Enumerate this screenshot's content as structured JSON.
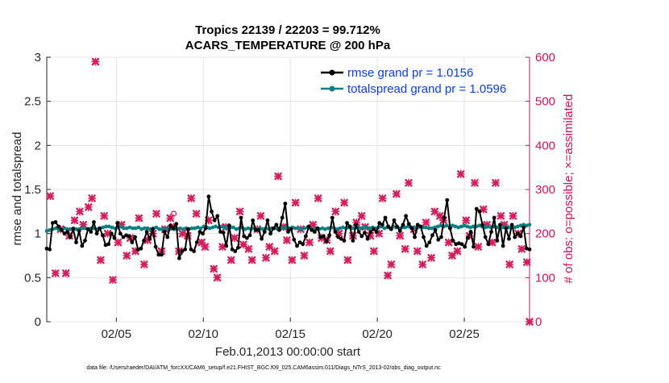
{
  "chart_data": {
    "type": "line",
    "title": "Tropics 22139 / 22203 = 99.712%",
    "subtitle": "ACARS_TEMPERATURE @ 200 hPa",
    "xlabel": "Feb.01,2013 00:00:00 start",
    "ylabel": "rmse and totalspread",
    "y2label": "# of obs: o=possible; ×=assimilated",
    "xlim": [
      1,
      28.75
    ],
    "ylim": [
      0,
      3
    ],
    "y2lim": [
      0,
      600
    ],
    "x_ticks": [
      5,
      10,
      15,
      20,
      25
    ],
    "x_tick_labels": [
      "02/05",
      "02/10",
      "02/15",
      "02/20",
      "02/25"
    ],
    "y_ticks": [
      0,
      0.5,
      1,
      1.5,
      2,
      2.5,
      3
    ],
    "y_tick_labels": [
      "0",
      "0.5",
      "1",
      "1.5",
      "2",
      "2.5",
      "3"
    ],
    "y2_ticks": [
      0,
      100,
      200,
      300,
      400,
      500,
      600
    ],
    "y2_tick_labels": [
      "0",
      "100",
      "200",
      "300",
      "400",
      "500",
      "600"
    ],
    "legend_position": "top-right",
    "series": [
      {
        "name": "rmse grand pr = 1.0156",
        "axis": "left",
        "color": "#000000",
        "values": [
          0.83,
          0.82,
          1.12,
          1.13,
          1.08,
          1.04,
          1.0,
          1.02,
          0.96,
          1.05,
          0.9,
          1.03,
          0.86,
          0.92,
          1.05,
          1.02,
          1.13,
          1.0,
          1.06,
          0.98,
          0.87,
          0.88,
          1.0,
          0.95,
          1.12,
          1.0,
          0.96,
          0.98,
          0.97,
          0.9,
          0.96,
          0.82,
          0.83,
          0.92,
          1.02,
          0.94,
          1.05,
          0.85,
          0.76,
          0.76,
          1.02,
          0.96,
          1.09,
          1.06,
          1.11,
          0.72,
          0.8,
          0.82,
          1.05,
          0.82,
          0.8,
          0.9,
          1.02,
          1.0,
          1.06,
          1.42,
          1.25,
          1.15,
          1.2,
          1.02,
          1.01,
          0.86,
          1.09,
          0.82,
          0.8,
          0.84,
          1.18,
          0.97,
          0.95,
          0.98,
          1.15,
          1.04,
          1.04,
          0.94,
          1.02,
          1.15,
          1.0,
          1.06,
          1.1,
          1.04,
          1.18,
          1.34,
          1.02,
          1.05,
          0.93,
          0.86,
          0.9,
          0.88,
          0.97,
          1.08,
          1.04,
          1.02,
          1.06,
          0.96,
          0.97,
          0.91,
          0.98,
          1.18,
          1.02,
          0.96,
          0.94,
          0.92,
          1.12,
          1.08,
          0.92,
          1.1,
          1.02,
          0.97,
          1.01,
          0.94,
          1.02,
          1.05,
          1.02,
          1.12,
          1.1,
          1.18,
          1.08,
          1.05,
          1.15,
          1.08,
          1.03,
          1.1,
          1.2,
          1.11,
          1.06,
          0.96,
          1.1,
          1.08,
          0.96,
          0.86,
          0.9,
          0.98,
          1.04,
          0.93,
          0.96,
          1.18,
          1.38,
          1.06,
          0.92,
          0.88,
          0.89,
          0.88,
          0.85,
          0.95,
          1.02,
          0.85,
          1.28,
          1.25,
          1.1,
          0.96,
          0.88,
          1.02,
          1.18,
          0.92,
          1.1,
          0.86,
          1.06,
          0.94,
          1.1,
          0.96,
          1.0,
          0.97,
          1.07,
          0.83,
          0.82
        ]
      },
      {
        "name": "totalspread grand pr = 1.0596",
        "axis": "left",
        "color": "#0c8080",
        "values": [
          1.03,
          1.04,
          1.05,
          1.06,
          1.05,
          1.05,
          1.06,
          1.05,
          1.05,
          1.06,
          1.05,
          1.05,
          1.06,
          1.06,
          1.05,
          1.06,
          1.06,
          1.05,
          1.06,
          1.07,
          1.08,
          1.08,
          1.07,
          1.06,
          1.07,
          1.08,
          1.06,
          1.06,
          1.07,
          1.06,
          1.06,
          1.07,
          1.05,
          1.06,
          1.06,
          1.05,
          1.06,
          1.07,
          1.05,
          1.05,
          1.06,
          1.05,
          1.06,
          1.05,
          1.05,
          1.06,
          1.05,
          1.06,
          1.05,
          1.06,
          1.06,
          1.07,
          1.06,
          1.08,
          1.07,
          1.06,
          1.07,
          1.08,
          1.07,
          1.08,
          1.07,
          1.06,
          1.07,
          1.07,
          1.05,
          1.06,
          1.07,
          1.05,
          1.06,
          1.05,
          1.06,
          1.05,
          1.06,
          1.05,
          1.06,
          1.05,
          1.06,
          1.06,
          1.05,
          1.07,
          1.06,
          1.07,
          1.06,
          1.07,
          1.06,
          1.06,
          1.05,
          1.06,
          1.07,
          1.06,
          1.05,
          1.06,
          1.05,
          1.06,
          1.05,
          1.06,
          1.07,
          1.06,
          1.05,
          1.06,
          1.07,
          1.06,
          1.07,
          1.06,
          1.06,
          1.07,
          1.06,
          1.07,
          1.07,
          1.06,
          1.07,
          1.06,
          1.07,
          1.08,
          1.06,
          1.07,
          1.06,
          1.08,
          1.07,
          1.06,
          1.07,
          1.07,
          1.08,
          1.07,
          1.07,
          1.06,
          1.08,
          1.07,
          1.07,
          1.06,
          1.06,
          1.07,
          1.08,
          1.09,
          1.08,
          1.09,
          1.08,
          1.09,
          1.08,
          1.07,
          1.08,
          1.09,
          1.08,
          1.07,
          1.08,
          1.08,
          1.09,
          1.08,
          1.07,
          1.08,
          1.07,
          1.08,
          1.07,
          1.08,
          1.07,
          1.08,
          1.07,
          1.08,
          1.07,
          1.08,
          1.09,
          1.1,
          1.09,
          1.1
        ]
      },
      {
        "name": "obs assimilated",
        "axis": "right",
        "color": "#d11f5e",
        "x": [
          1.2,
          1.5,
          1.8,
          2.1,
          2.3,
          2.6,
          2.9,
          3.1,
          3.4,
          3.6,
          3.8,
          4.1,
          4.3,
          4.5,
          4.8,
          5.1,
          5.3,
          5.6,
          5.8,
          6.1,
          6.3,
          6.6,
          6.8,
          7.1,
          7.3,
          7.6,
          7.8,
          8.1,
          8.3,
          8.6,
          8.8,
          9.1,
          9.3,
          9.6,
          9.9,
          10.1,
          10.3,
          10.6,
          10.8,
          11.1,
          11.3,
          11.6,
          11.8,
          12.1,
          12.3,
          12.6,
          12.8,
          13.1,
          13.3,
          13.6,
          13.8,
          14.1,
          14.3,
          14.6,
          14.8,
          15.1,
          15.3,
          15.6,
          15.8,
          16.1,
          16.3,
          16.6,
          16.8,
          17.1,
          17.3,
          17.6,
          17.8,
          18.1,
          18.3,
          18.6,
          18.8,
          19.1,
          19.3,
          19.6,
          19.8,
          20.1,
          20.3,
          20.6,
          20.8,
          21.1,
          21.3,
          21.6,
          21.8,
          22.1,
          22.3,
          22.6,
          22.8,
          23.1,
          23.3,
          23.6,
          23.8,
          24.1,
          24.3,
          24.6,
          24.8,
          25.1,
          25.3,
          25.6,
          25.8,
          26.1,
          26.3,
          26.6,
          26.8,
          27.1,
          27.3,
          27.6,
          27.8,
          28.1,
          28.3,
          28.6,
          28.75
        ],
        "values": [
          285,
          110,
          210,
          110,
          195,
          230,
          250,
          220,
          260,
          280,
          590,
          140,
          240,
          200,
          95,
          180,
          220,
          150,
          190,
          160,
          235,
          130,
          185,
          200,
          245,
          160,
          210,
          235,
          215,
          160,
          200,
          195,
          280,
          245,
          180,
          170,
          230,
          120,
          100,
          170,
          215,
          140,
          190,
          250,
          175,
          165,
          140,
          210,
          240,
          145,
          170,
          160,
          330,
          215,
          185,
          140,
          270,
          210,
          150,
          180,
          220,
          280,
          190,
          185,
          160,
          250,
          200,
          270,
          140,
          195,
          225,
          240,
          215,
          195,
          160,
          200,
          280,
          105,
          130,
          290,
          195,
          165,
          315,
          210,
          160,
          130,
          225,
          145,
          250,
          240,
          230,
          180,
          150,
          160,
          335,
          230,
          195,
          315,
          170,
          255,
          220,
          180,
          315,
          240,
          220,
          130,
          240,
          200,
          165,
          135,
          0
        ]
      },
      {
        "name": "obs possible",
        "axis": "right",
        "color": "#d11f5e",
        "x": [
          8.3
        ],
        "values": [
          245
        ]
      }
    ],
    "footnote": "data file: /Users/raeder/DAI/ATM_forcXX/CAM6_setup/f.e21.FHIST_BGC.f09_025.CAM6assim.011/Diags_NTrS_2013-02/obs_diag_output.nc"
  }
}
